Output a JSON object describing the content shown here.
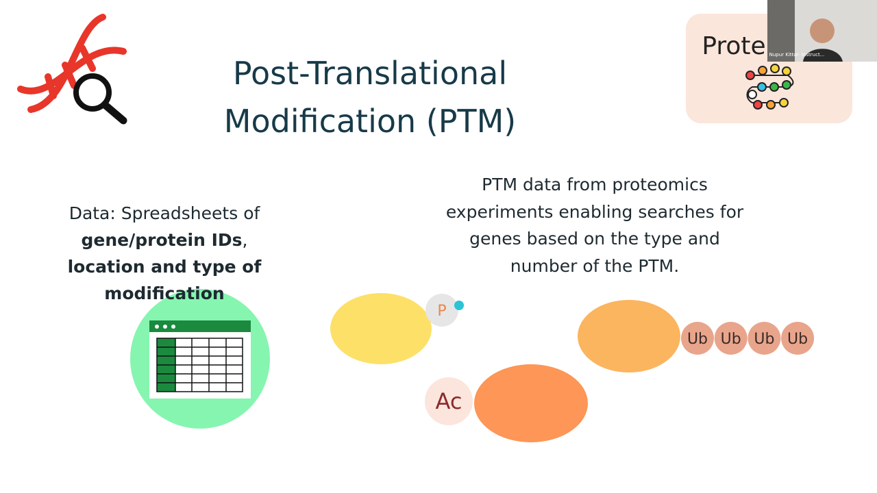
{
  "slide": {
    "title": {
      "lines": [
        "Post-Translational",
        "Modification (PTM)"
      ]
    },
    "left_text": {
      "line1": "Data: Spreadsheets of",
      "bold1": "gene/protein IDs",
      "comma": ",",
      "bold2": "location and type of modification"
    },
    "right_text": {
      "lines": [
        "PTM data from proteomics",
        "experiments enabling searches for",
        "genes based on the type and",
        "number of the PTM."
      ]
    },
    "labels": {
      "p": "P",
      "ac": "Ac",
      "ub": [
        "Ub",
        "Ub",
        "Ub",
        "Ub"
      ]
    },
    "card": {
      "text": "Prote"
    },
    "video": {
      "name": "Nupur Kittur- Instruct..."
    }
  }
}
